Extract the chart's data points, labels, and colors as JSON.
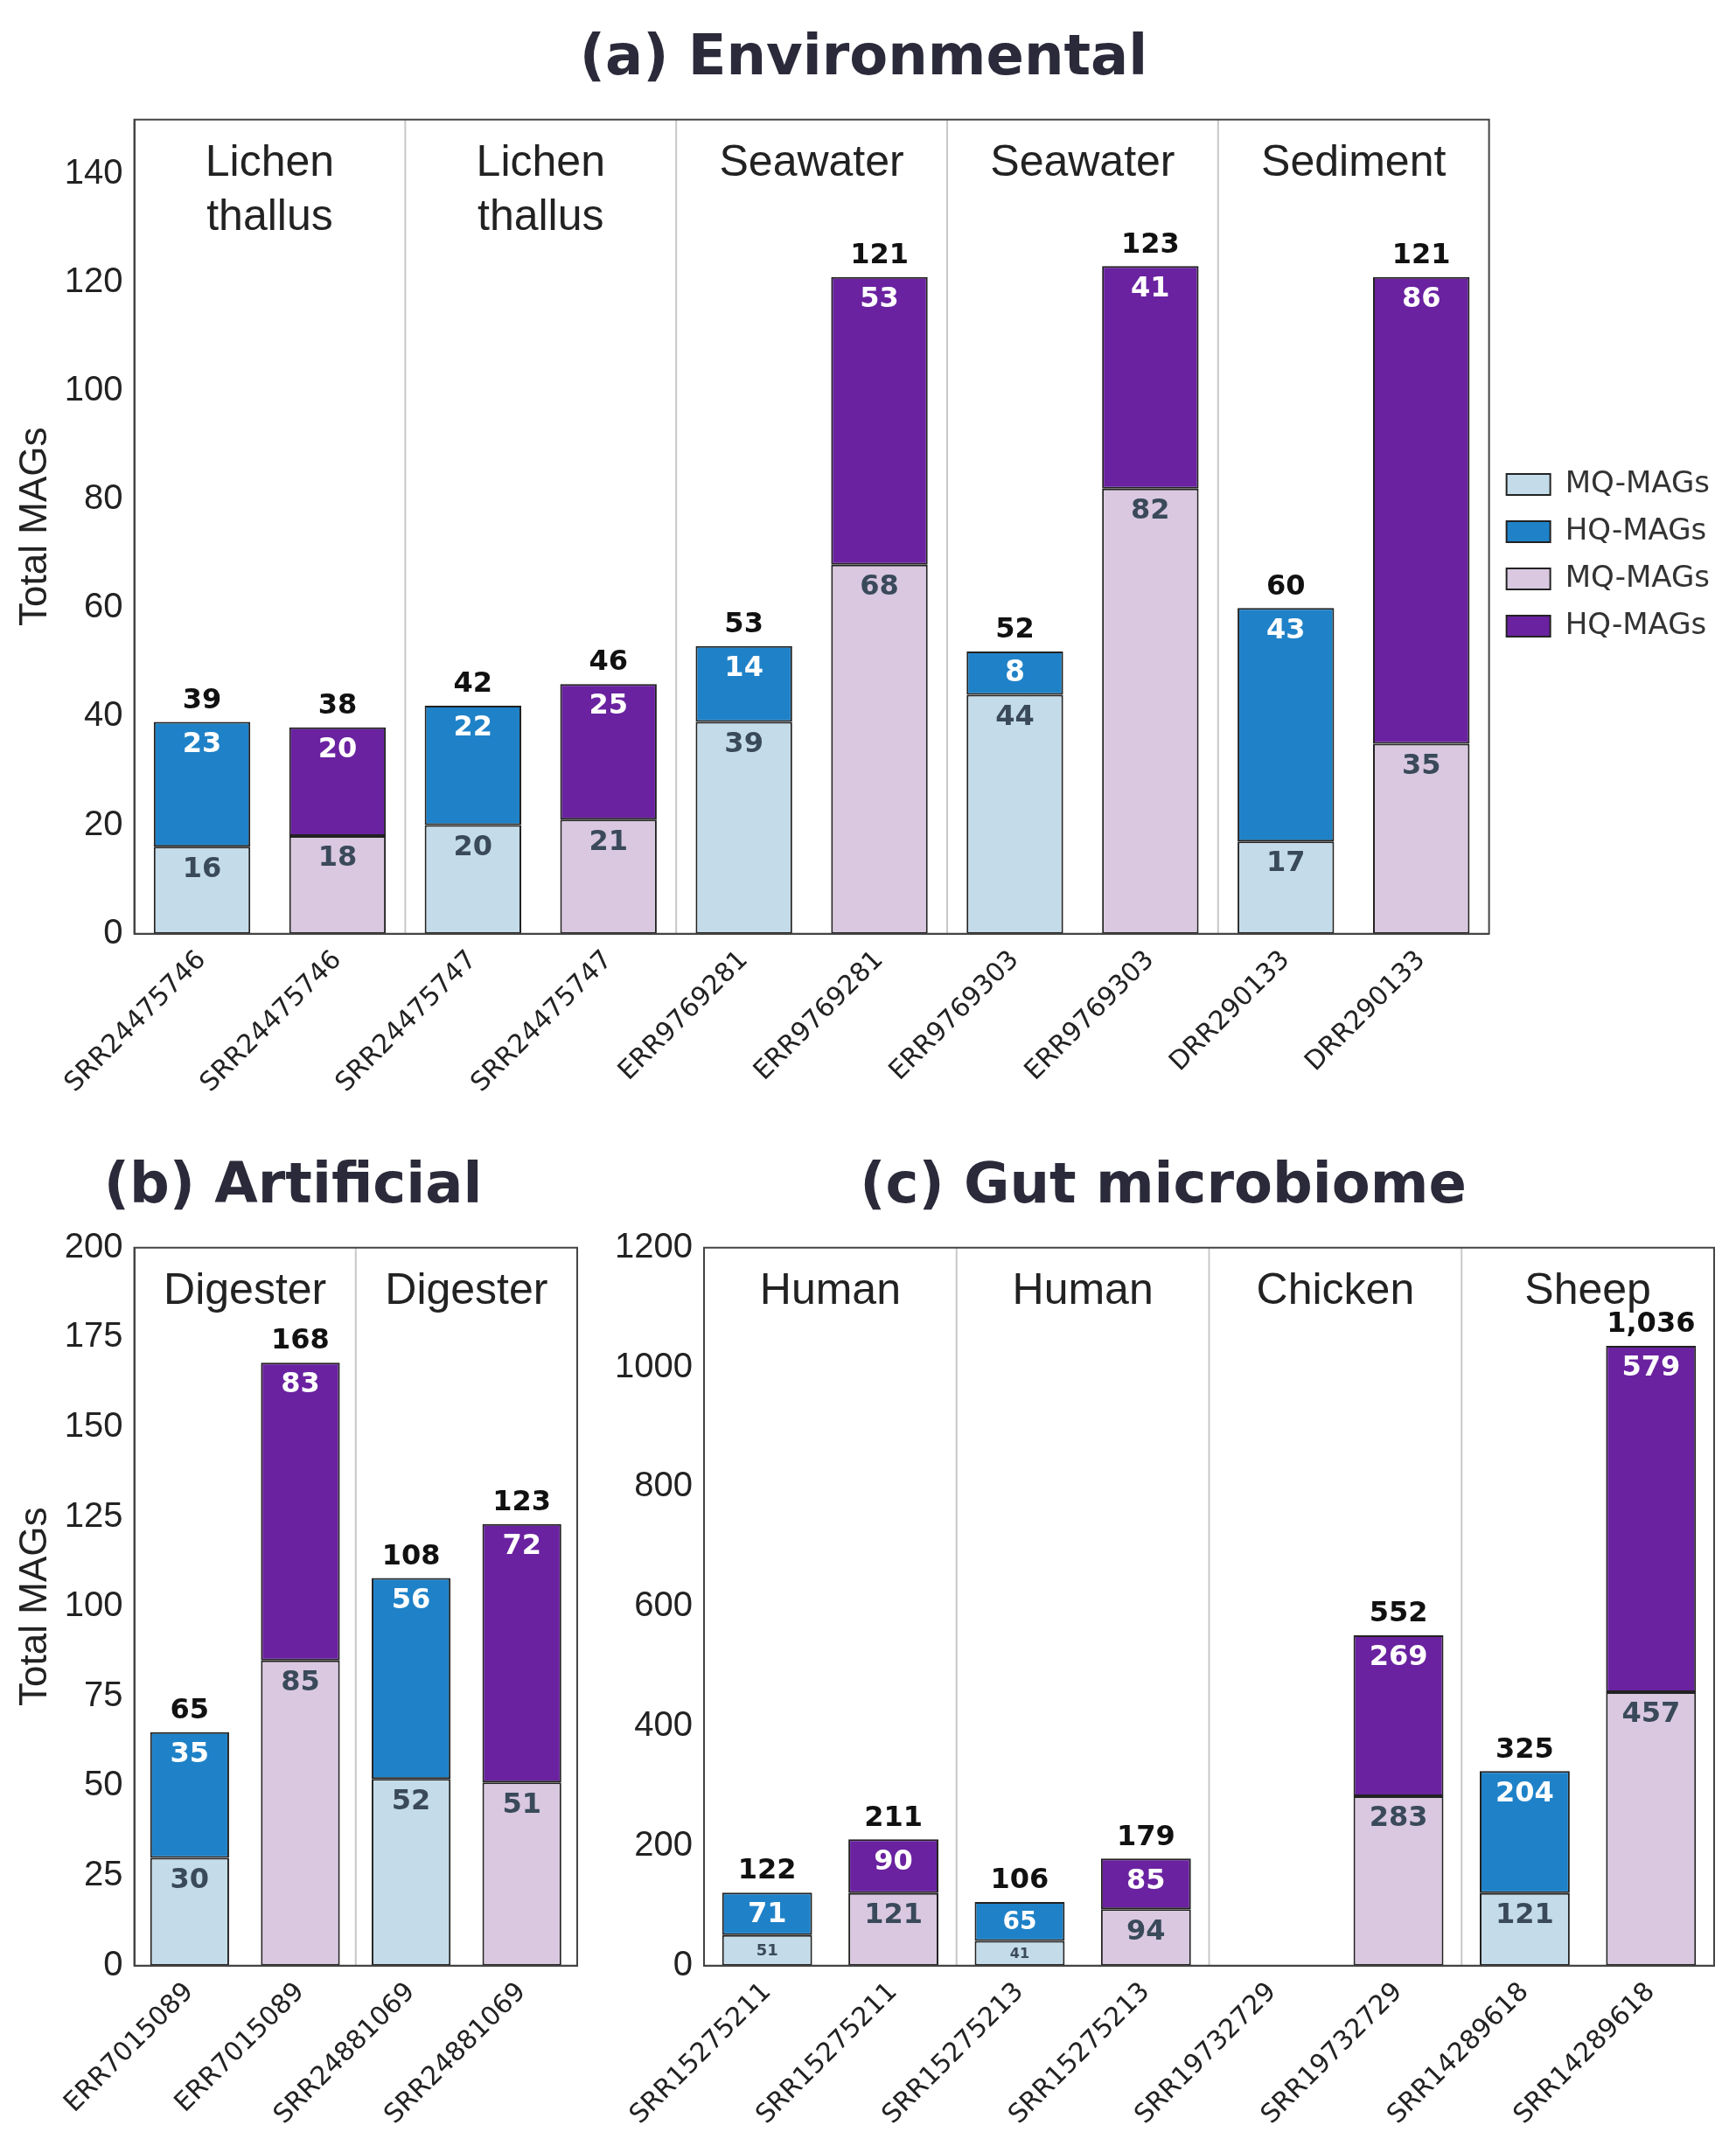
{
  "chart_data": [
    {
      "type": "bar",
      "title": "(a) Environmental",
      "ylabel": "Total MAGs",
      "stacked": true,
      "grid": false,
      "legend": "right",
      "data_labels": true,
      "categories": [
        "SRR24475746",
        "SRR24475746",
        "SRR24475747",
        "SRR24475747",
        "ERR9769281",
        "ERR9769281",
        "ERR9769303",
        "ERR9769303",
        "DRR290133",
        "DRR290133"
      ],
      "series": [
        {
          "name": "MQ-MAGs",
          "color": "#c4dcea",
          "values": [
            16,
            null,
            20,
            null,
            39,
            null,
            44,
            null,
            17,
            null
          ]
        },
        {
          "name": "HQ-MAGs",
          "color": "#1f82c8",
          "values": [
            23,
            null,
            22,
            null,
            14,
            null,
            8,
            null,
            43,
            null
          ]
        },
        {
          "name": "MQ-MAGs",
          "color": "#d9c8e0",
          "values": [
            null,
            18,
            null,
            21,
            null,
            68,
            null,
            82,
            null,
            35
          ]
        },
        {
          "name": "HQ-MAGs",
          "color": "#6a22a0",
          "values": [
            null,
            20,
            null,
            25,
            null,
            53,
            null,
            41,
            null,
            86
          ]
        }
      ],
      "totals": [
        "39",
        "38",
        "42",
        "46",
        "53",
        "121",
        "52",
        "123",
        "60",
        "121"
      ],
      "ylim": [
        0,
        150
      ],
      "yticks": [
        0,
        20,
        40,
        60,
        80,
        100,
        120,
        140
      ],
      "annotations": [
        "Lichen thallus",
        "Lichen thallus",
        "Seawater",
        "Seawater",
        "Sediment"
      ]
    },
    {
      "type": "bar",
      "title": "(b) Artificial",
      "ylabel": "Total MAGs",
      "stacked": true,
      "grid": false,
      "legend": false,
      "data_labels": true,
      "categories": [
        "ERR7015089",
        "ERR7015089",
        "SRR24881069",
        "SRR24881069"
      ],
      "series": [
        {
          "color": "#c4dcea",
          "values": [
            30,
            null,
            52,
            null
          ]
        },
        {
          "color": "#1f82c8",
          "values": [
            35,
            null,
            56,
            null
          ]
        },
        {
          "color": "#d9c8e0",
          "values": [
            null,
            85,
            null,
            51
          ]
        },
        {
          "color": "#6a22a0",
          "values": [
            null,
            83,
            null,
            72
          ]
        }
      ],
      "totals": [
        "65",
        "168",
        "108",
        "123"
      ],
      "ylim": [
        0,
        200
      ],
      "yticks": [
        0,
        25,
        50,
        75,
        100,
        125,
        150,
        175,
        200
      ],
      "annotations": [
        "Digester",
        "Digester"
      ]
    },
    {
      "type": "bar",
      "title": "(c) Gut microbiome",
      "stacked": true,
      "grid": false,
      "legend": false,
      "data_labels": true,
      "categories": [
        "SRR15275211",
        "SRR15275211",
        "SRR15275213",
        "SRR15275213",
        "SRR19732729",
        "SRR19732729",
        "SRR14289618",
        "SRR14289618"
      ],
      "series": [
        {
          "color": "#c4dcea",
          "values": [
            51,
            null,
            41,
            null,
            null,
            null,
            121,
            null
          ]
        },
        {
          "color": "#1f82c8",
          "values": [
            71,
            null,
            65,
            null,
            null,
            null,
            204,
            null
          ]
        },
        {
          "color": "#d9c8e0",
          "values": [
            null,
            121,
            null,
            94,
            null,
            283,
            null,
            457
          ]
        },
        {
          "color": "#6a22a0",
          "values": [
            null,
            90,
            null,
            85,
            null,
            269,
            null,
            579
          ]
        }
      ],
      "totals": [
        "122",
        "211",
        "106",
        "179",
        null,
        "552",
        "325",
        "1,036"
      ],
      "ylim": [
        0,
        1200
      ],
      "yticks": [
        0,
        200,
        400,
        600,
        800,
        1000,
        1200
      ],
      "annotations": [
        "Human",
        "Human",
        "Chicken",
        "Sheep"
      ]
    }
  ]
}
